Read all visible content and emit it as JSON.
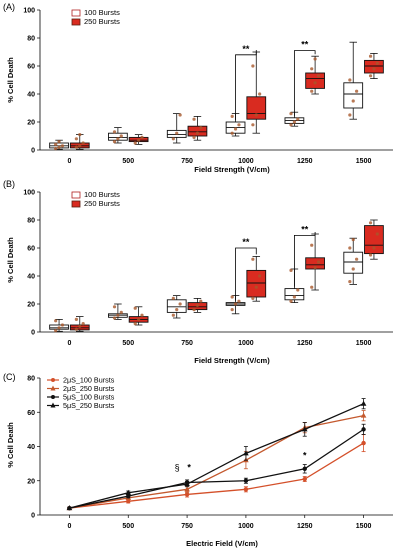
{
  "chart_data": [
    {
      "panel_label": "(A)",
      "type": "box",
      "xlabel": "Field Strength (V/cm)",
      "ylabel": "% Cell Death",
      "ylim": [
        0,
        100
      ],
      "yticks": [
        "0",
        "20",
        "40",
        "60",
        "80",
        "100"
      ],
      "categories": [
        "0",
        "500",
        "750",
        "1000",
        "1250",
        "1500"
      ],
      "legend_placement": "top-left",
      "series": [
        {
          "name": "100 Bursts",
          "color": "#ffffff",
          "stroke": "#b02020",
          "boxes": [
            {
              "min": 0.5,
              "q1": 1.5,
              "median": 3,
              "q3": 5,
              "max": 7,
              "points": [
                1,
                2,
                3,
                4,
                6
              ]
            },
            {
              "min": 5,
              "q1": 7,
              "median": 9,
              "q3": 12,
              "max": 16,
              "points": [
                6,
                8,
                10,
                13
              ]
            },
            {
              "min": 5,
              "q1": 9,
              "median": 11,
              "q3": 14,
              "max": 26,
              "points": [
                8,
                12,
                25
              ]
            },
            {
              "min": 10,
              "q1": 12,
              "median": 16,
              "q3": 20,
              "max": 26,
              "points": [
                12,
                15,
                18,
                24
              ]
            },
            {
              "min": 17,
              "q1": 19,
              "median": 21,
              "q3": 23,
              "max": 27,
              "points": [
                18,
                20,
                22,
                26
              ]
            },
            {
              "min": 22,
              "q1": 30,
              "median": 40,
              "q3": 48,
              "max": 77,
              "points": [
                25,
                35,
                42,
                50
              ]
            }
          ]
        },
        {
          "name": "250 Bursts",
          "color": "#d92b20",
          "stroke": "#5a1e10",
          "boxes": [
            {
              "min": 0.5,
              "q1": 1.5,
              "median": 3,
              "q3": 5,
              "max": 11,
              "points": [
                2,
                3,
                5,
                8,
                11
              ]
            },
            {
              "min": 4,
              "q1": 6,
              "median": 7,
              "q3": 9,
              "max": 11,
              "points": [
                5,
                7,
                9
              ]
            },
            {
              "min": 7,
              "q1": 10,
              "median": 13,
              "q3": 17,
              "max": 24,
              "points": [
                9,
                12,
                16,
                22
              ]
            },
            {
              "min": 12,
              "q1": 22,
              "median": 26,
              "q3": 38,
              "max": 70,
              "points": [
                18,
                25,
                40,
                60
              ]
            },
            {
              "min": 40,
              "q1": 44,
              "median": 51,
              "q3": 55,
              "max": 67,
              "points": [
                42,
                48,
                53,
                58,
                65
              ]
            },
            {
              "min": 51,
              "q1": 55,
              "median": 60,
              "q3": 64,
              "max": 69,
              "points": [
                53,
                58,
                62,
                67
              ]
            }
          ]
        }
      ],
      "annotations": [
        {
          "text": "**",
          "category": "1000"
        },
        {
          "text": "**",
          "category": "1250"
        }
      ]
    },
    {
      "panel_label": "(B)",
      "type": "box",
      "xlabel": "Field Strength (V/cm)",
      "ylabel": "% Cell Death",
      "ylim": [
        0,
        100
      ],
      "yticks": [
        "0",
        "20",
        "40",
        "60",
        "80",
        "100"
      ],
      "categories": [
        "0",
        "500",
        "750",
        "1000",
        "1250",
        "1500"
      ],
      "legend_placement": "top-left",
      "series": [
        {
          "name": "100 Bursts",
          "color": "#ffffff",
          "stroke": "#b02020",
          "boxes": [
            {
              "min": 0.5,
              "q1": 2,
              "median": 3,
              "q3": 5,
              "max": 9,
              "points": [
                1,
                3,
                5,
                8
              ]
            },
            {
              "min": 9,
              "q1": 10.5,
              "median": 12,
              "q3": 13,
              "max": 20,
              "points": [
                10,
                12,
                14,
                18
              ]
            },
            {
              "min": 10,
              "q1": 14,
              "median": 18,
              "q3": 23,
              "max": 26,
              "points": [
                12,
                16,
                20,
                24
              ]
            },
            {
              "min": 13,
              "q1": 19,
              "median": 20,
              "q3": 21,
              "max": 26,
              "points": [
                16,
                20,
                22,
                25
              ]
            },
            {
              "min": 21,
              "q1": 23,
              "median": 26,
              "q3": 31,
              "max": 45,
              "points": [
                22,
                25,
                30,
                44
              ]
            },
            {
              "min": 34,
              "q1": 42,
              "median": 50,
              "q3": 57,
              "max": 67,
              "points": [
                36,
                45,
                52,
                60,
                66
              ]
            }
          ]
        },
        {
          "name": "250 Bursts",
          "color": "#d92b20",
          "stroke": "#5a1e10",
          "boxes": [
            {
              "min": 0.5,
              "q1": 1.5,
              "median": 3,
              "q3": 5,
              "max": 11,
              "points": [
                2,
                4,
                6,
                9
              ]
            },
            {
              "min": 5,
              "q1": 7,
              "median": 9,
              "q3": 11,
              "max": 18,
              "points": [
                6,
                9,
                12,
                17
              ]
            },
            {
              "min": 14,
              "q1": 16,
              "median": 18,
              "q3": 21,
              "max": 24,
              "points": [
                16,
                19,
                22
              ]
            },
            {
              "min": 22,
              "q1": 25,
              "median": 35,
              "q3": 44,
              "max": 54,
              "points": [
                24,
                32,
                40,
                52
              ]
            },
            {
              "min": 30,
              "q1": 45,
              "median": 48,
              "q3": 53,
              "max": 70,
              "points": [
                32,
                46,
                50,
                62
              ]
            },
            {
              "min": 52,
              "q1": 56,
              "median": 62,
              "q3": 76,
              "max": 80,
              "points": [
                55,
                60,
                70,
                78
              ]
            }
          ]
        }
      ],
      "annotations": [
        {
          "text": "**",
          "category": "1000"
        },
        {
          "text": "**",
          "category": "1250"
        }
      ]
    },
    {
      "panel_label": "(C)",
      "type": "line",
      "xlabel": "Electric Field (V/cm)",
      "ylabel": "% Cell Death",
      "ylim": [
        0,
        80
      ],
      "yticks": [
        "0",
        "20",
        "40",
        "60",
        "80"
      ],
      "x": [
        "0",
        "500",
        "750",
        "1000",
        "1250",
        "1500"
      ],
      "legend_placement": "top-left",
      "series": [
        {
          "name": "2μS_100 Bursts",
          "color": "#d4502a",
          "marker": "circle",
          "values": [
            4,
            8,
            12,
            15,
            21,
            42
          ],
          "errors": [
            0.5,
            1,
            1.5,
            1.5,
            1.5,
            5
          ]
        },
        {
          "name": "2μS_250 Bursts",
          "color": "#c4592e",
          "marker": "triangle",
          "values": [
            4,
            10,
            15,
            32,
            51,
            58
          ],
          "errors": [
            0.5,
            1,
            2,
            5,
            3,
            3
          ]
        },
        {
          "name": "5μS_100 Bursts",
          "color": "#111111",
          "marker": "circle",
          "values": [
            4,
            11,
            19,
            20,
            27,
            50
          ],
          "errors": [
            0.5,
            1,
            1.5,
            1.5,
            2.5,
            3
          ]
        },
        {
          "name": "5μS_250 Bursts",
          "color": "#111111",
          "marker": "triangle",
          "values": [
            4,
            13,
            18,
            36,
            50,
            65
          ],
          "errors": [
            0.5,
            1,
            1.5,
            4,
            4,
            3
          ]
        }
      ],
      "annotations": [
        {
          "text": "§",
          "x": "750"
        },
        {
          "text": "*",
          "x": "750"
        },
        {
          "text": "*",
          "x": "1250"
        }
      ]
    }
  ]
}
